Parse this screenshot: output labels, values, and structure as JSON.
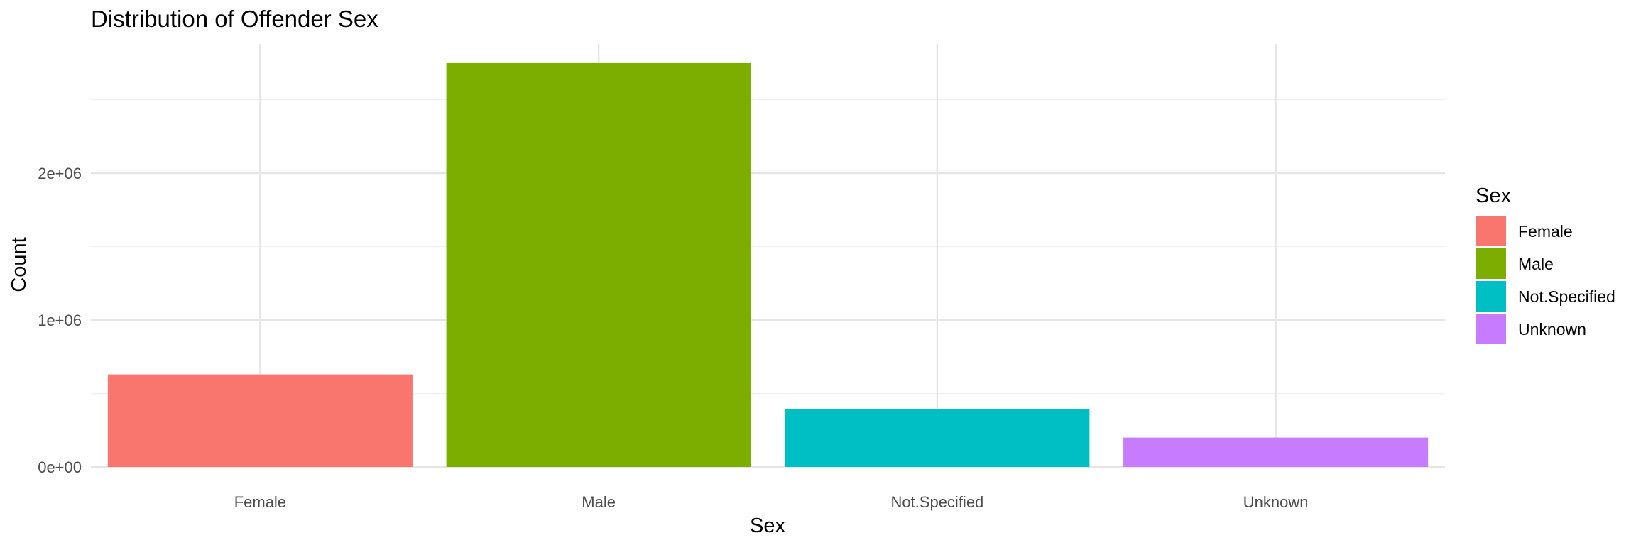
{
  "chart_data": {
    "type": "bar",
    "title": "Distribution of Offender Sex",
    "xlabel": "Sex",
    "ylabel": "Count",
    "categories": [
      "Female",
      "Male",
      "Not.Specified",
      "Unknown"
    ],
    "values": [
      630000,
      2750000,
      395000,
      200000
    ],
    "colors": [
      "#F8766D",
      "#7CAE00",
      "#00BFC4",
      "#C77CFF"
    ],
    "ylim": [
      0,
      2880000
    ],
    "yticks": [
      0,
      1000000,
      2000000
    ],
    "ytick_labels": [
      "0e+00",
      "1e+06",
      "2e+06"
    ],
    "grid": true,
    "legend": {
      "title": "Sex",
      "position": "right",
      "entries": [
        "Female",
        "Male",
        "Not.Specified",
        "Unknown"
      ]
    }
  }
}
